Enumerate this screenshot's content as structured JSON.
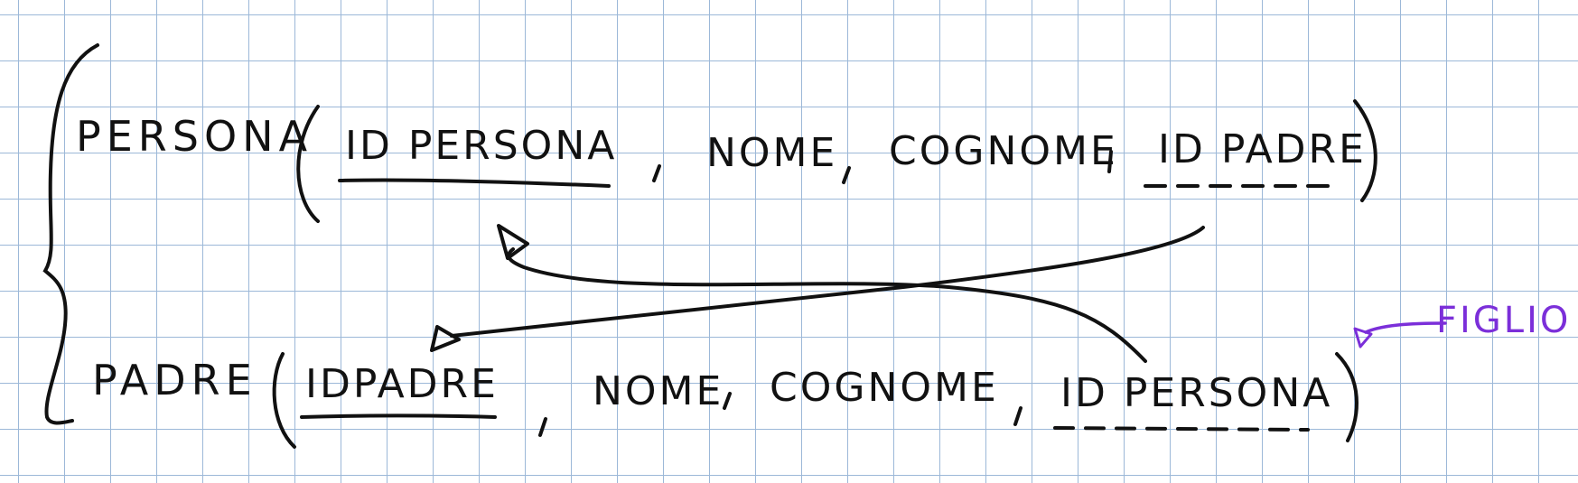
{
  "colors": {
    "ink": "#111111",
    "annotation": "#7b2fd9",
    "grid": "#9cb8d8",
    "paper": "#ffffff"
  },
  "relations": [
    {
      "name": "PERSONA",
      "attributes": [
        {
          "label": "ID PERSONA",
          "key": "primary"
        },
        {
          "label": "NOME",
          "key": "none"
        },
        {
          "label": "COGNOME",
          "key": "none"
        },
        {
          "label": "ID PADRE",
          "key": "foreign"
        }
      ]
    },
    {
      "name": "PADRE",
      "attributes": [
        {
          "label": "IDPADRE",
          "key": "primary"
        },
        {
          "label": "NOME",
          "key": "none"
        },
        {
          "label": "COGNOME",
          "key": "none"
        },
        {
          "label": "ID PERSONA",
          "key": "foreign"
        }
      ]
    }
  ],
  "annotation": {
    "label": "FIGLIO"
  },
  "references": [
    {
      "from": "PERSONA.ID PADRE",
      "to": "PADRE.IDPADRE"
    },
    {
      "from": "PADRE.ID PERSONA",
      "to": "PERSONA.ID PERSONA"
    }
  ]
}
